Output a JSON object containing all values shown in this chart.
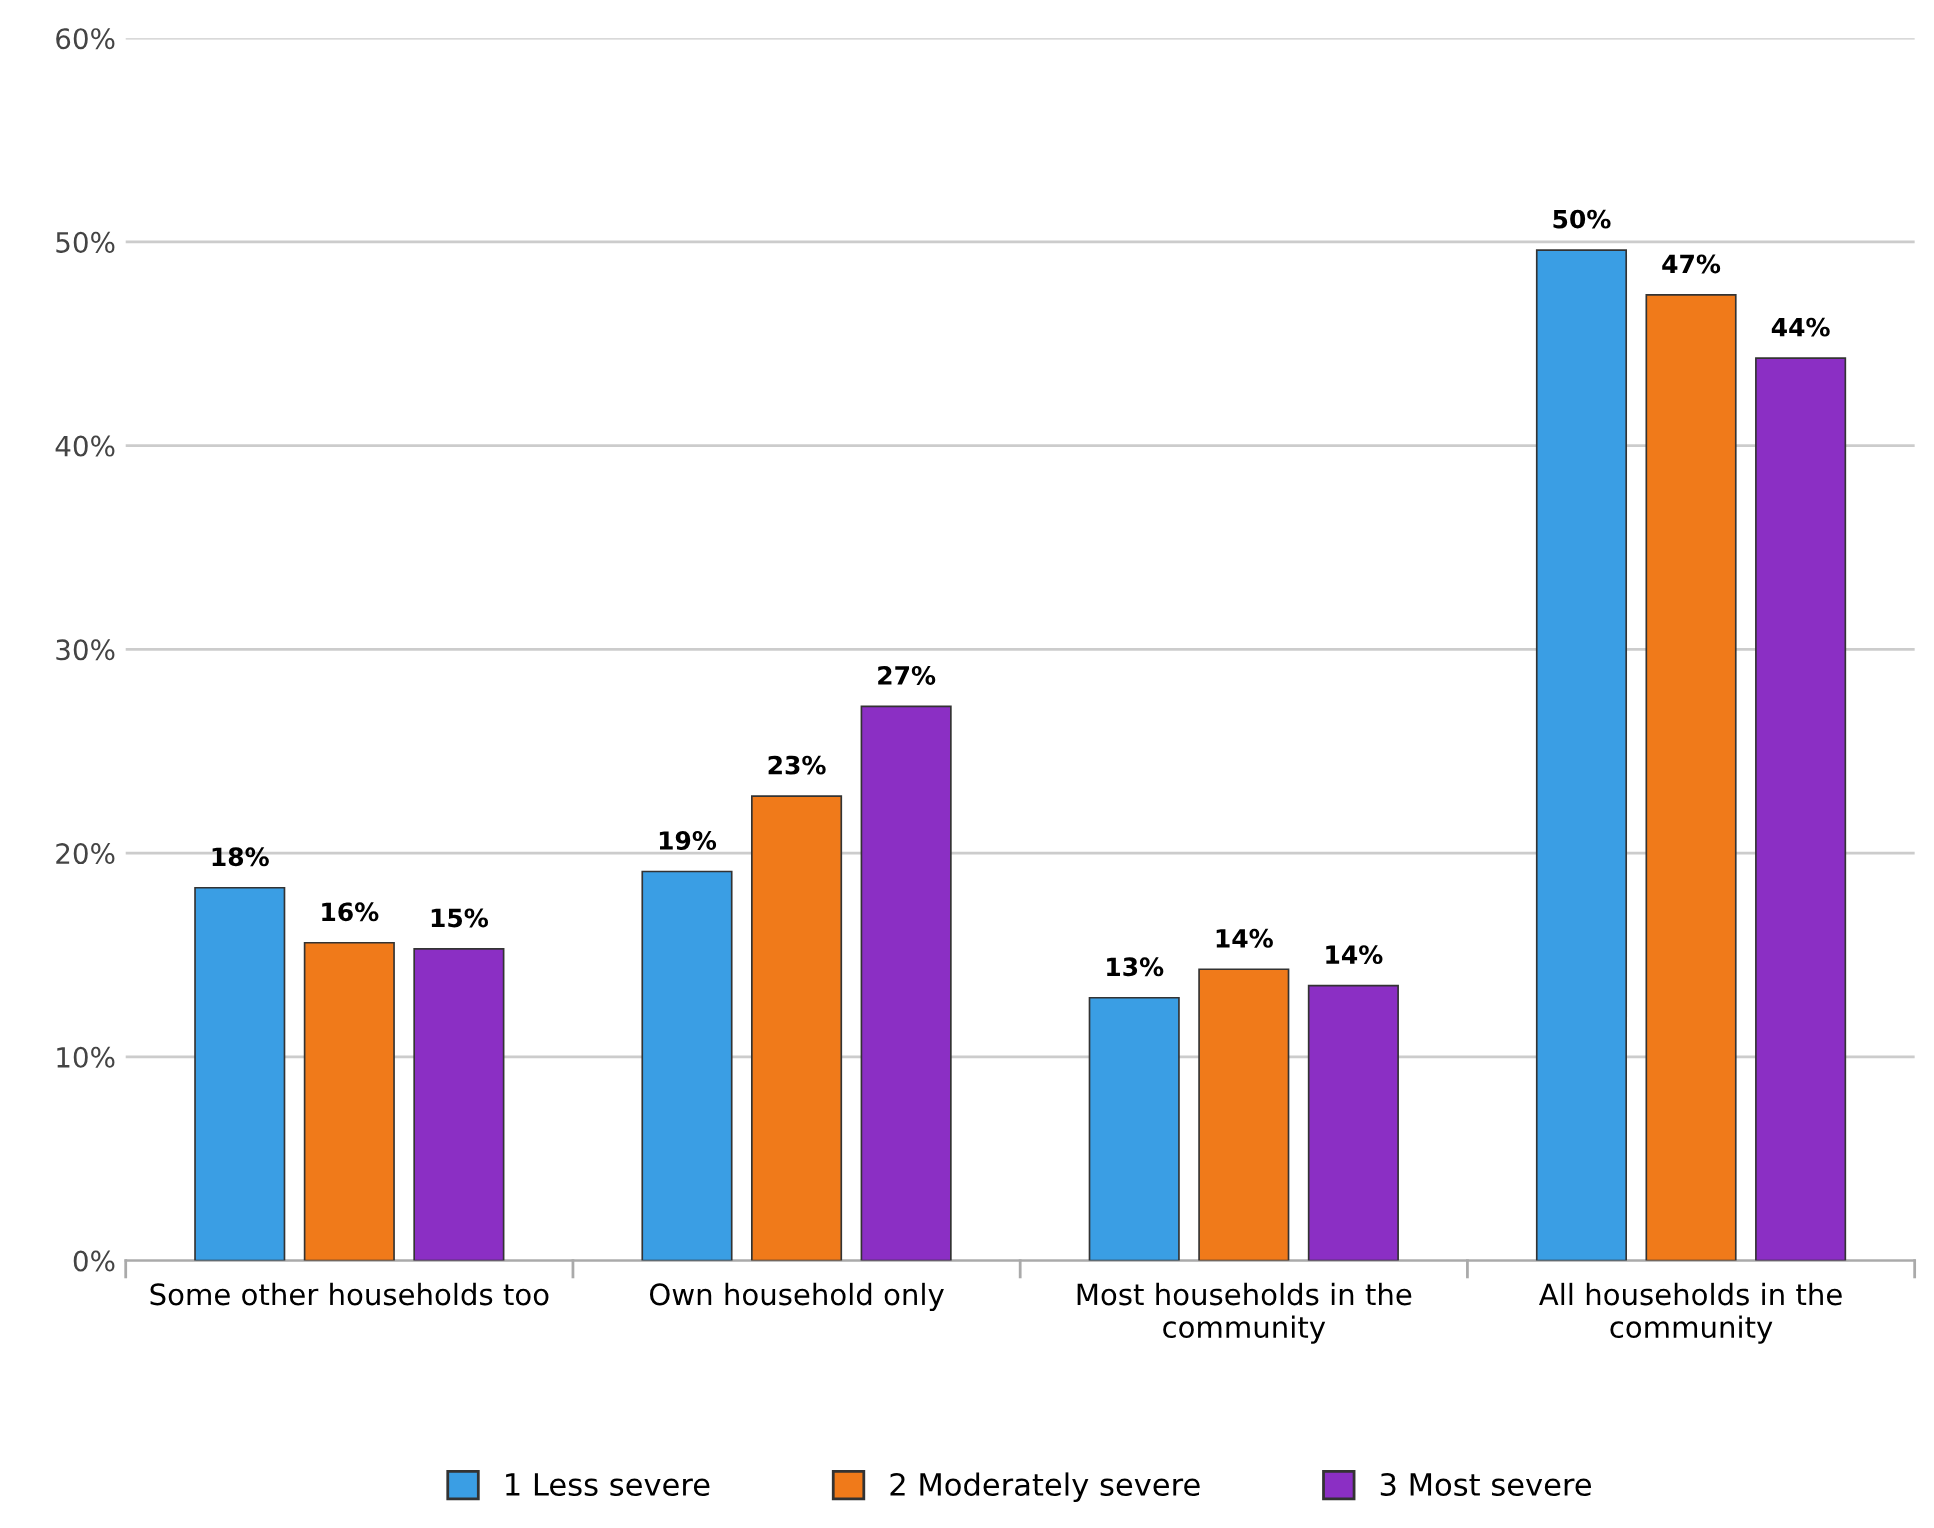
{
  "chart_data": {
    "type": "bar",
    "categories": [
      "Some other households too",
      "Own household only",
      "Most households in the\ncommunity",
      "All households in the\ncommunity"
    ],
    "series": [
      {
        "name": "1 Less severe",
        "color": "#3a9ee4",
        "values": [
          18.3,
          19.1,
          12.9,
          49.6
        ],
        "value_labels": [
          "18%",
          "19%",
          "13%",
          "50%"
        ]
      },
      {
        "name": "2 Moderately severe",
        "color": "#f07a1a",
        "values": [
          15.6,
          22.8,
          14.3,
          47.4
        ],
        "value_labels": [
          "16%",
          "23%",
          "14%",
          "47%"
        ]
      },
      {
        "name": "3 Most severe",
        "color": "#8b2fc4",
        "values": [
          15.3,
          27.2,
          13.5,
          44.3
        ],
        "value_labels": [
          "15%",
          "27%",
          "14%",
          "44%"
        ]
      }
    ],
    "ylim": [
      0,
      60
    ],
    "yticks": [
      {
        "value": 0,
        "label": "0%"
      },
      {
        "value": 10,
        "label": "10%"
      },
      {
        "value": 20,
        "label": "20%"
      },
      {
        "value": 30,
        "label": "30%"
      },
      {
        "value": 40,
        "label": "40%"
      },
      {
        "value": 50,
        "label": "50%"
      },
      {
        "value": 60,
        "label": "60%"
      }
    ],
    "grid": "y",
    "legend": "bottom"
  }
}
